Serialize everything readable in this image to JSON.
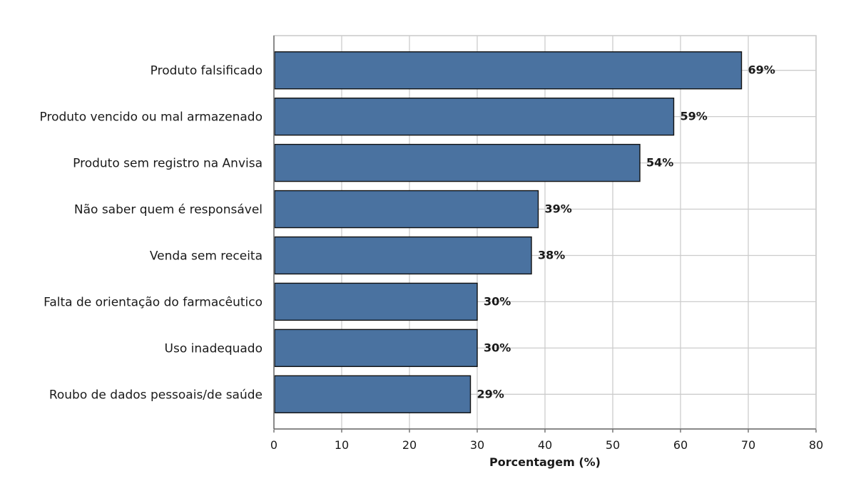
{
  "chart_data": {
    "type": "bar",
    "orientation": "horizontal",
    "categories": [
      "Produto falsificado",
      "Produto vencido ou mal armazenado",
      "Produto sem registro na Anvisa",
      "Não saber quem é responsável",
      "Venda sem receita",
      "Falta de orientação do farmacêutico",
      "Uso inadequado",
      "Roubo de dados pessoais/de saúde"
    ],
    "values": [
      69,
      59,
      54,
      39,
      38,
      30,
      30,
      29
    ],
    "value_labels": [
      "69%",
      "59%",
      "54%",
      "39%",
      "38%",
      "30%",
      "30%",
      "29%"
    ],
    "title": "",
    "xlabel": "Porcentagem (%)",
    "ylabel": "",
    "xlim": [
      0,
      80
    ],
    "xticks": [
      0,
      10,
      20,
      30,
      40,
      50,
      60,
      70,
      80
    ],
    "xtick_labels": [
      "0",
      "10",
      "20",
      "30",
      "40",
      "50",
      "60",
      "70",
      "80"
    ],
    "grid": true,
    "bar_color": "#4a72a0",
    "bar_edge_color": "#111111",
    "grid_color": "#cccccc"
  }
}
